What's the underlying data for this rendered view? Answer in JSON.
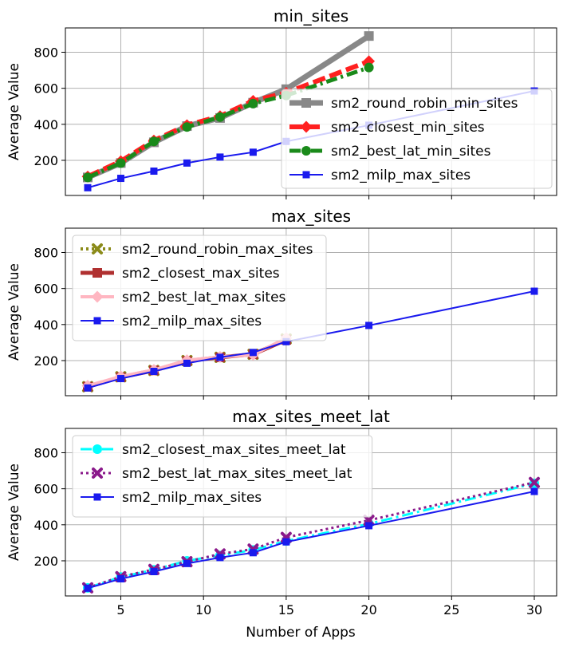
{
  "figure": {
    "xlabel": "Number of Apps",
    "ylabel": "Average Value"
  },
  "chart_data": [
    {
      "type": "line",
      "title": "min_sites",
      "xlabel": "",
      "ylabel": "Average Value",
      "xlim": [
        1.65,
        31.35
      ],
      "ylim": [
        5,
        935
      ],
      "xticks": [
        5,
        10,
        15,
        20,
        25,
        30
      ],
      "yticks": [
        200,
        400,
        600,
        800
      ],
      "grid": true,
      "legend": "lower-right",
      "series": [
        {
          "name": "sm2_round_robin_min_sites",
          "color": "#888888",
          "style": "solid",
          "width": 7,
          "marker": "square",
          "x": [
            3,
            5,
            7,
            9,
            11,
            13,
            15,
            20
          ],
          "y": [
            105,
            185,
            300,
            390,
            435,
            520,
            595,
            890
          ]
        },
        {
          "name": "sm2_closest_min_sites",
          "color": "#ff2020",
          "style": "dashed",
          "width": 6,
          "marker": "diamond",
          "x": [
            3,
            5,
            7,
            9,
            11,
            13,
            15,
            20
          ],
          "y": [
            110,
            195,
            310,
            395,
            445,
            530,
            575,
            750
          ]
        },
        {
          "name": "sm2_best_lat_min_sites",
          "color": "#1a8a1a",
          "style": "dashdot",
          "width": 5,
          "marker": "circle",
          "x": [
            3,
            5,
            7,
            9,
            11,
            13,
            15,
            20
          ],
          "y": [
            105,
            185,
            305,
            385,
            440,
            515,
            560,
            715
          ]
        },
        {
          "name": "sm2_milp_max_sites",
          "color": "#1a1aee",
          "style": "solid",
          "width": 2,
          "marker": "square-small",
          "x": [
            3,
            5,
            7,
            9,
            11,
            13,
            15,
            20,
            30
          ],
          "y": [
            48,
            100,
            140,
            185,
            218,
            245,
            305,
            395,
            585
          ]
        }
      ]
    },
    {
      "type": "line",
      "title": "max_sites",
      "xlabel": "",
      "ylabel": "Average Value",
      "xlim": [
        1.65,
        31.35
      ],
      "ylim": [
        5,
        935
      ],
      "xticks": [
        5,
        10,
        15,
        20,
        25,
        30
      ],
      "yticks": [
        200,
        400,
        600,
        800
      ],
      "grid": true,
      "legend": "upper-left",
      "series": [
        {
          "name": "sm2_round_robin_max_sites",
          "color": "#8b8b1a",
          "style": "dotted",
          "width": 4,
          "marker": "x",
          "x": [
            3,
            5,
            7,
            9,
            11,
            13,
            15
          ],
          "y": [
            55,
            110,
            145,
            200,
            218,
            235,
            320
          ]
        },
        {
          "name": "sm2_closest_max_sites",
          "color": "#b03030",
          "style": "solid",
          "width": 5,
          "marker": "square",
          "x": [
            3,
            5,
            7,
            9,
            11,
            13,
            15
          ],
          "y": [
            55,
            108,
            145,
            198,
            218,
            235,
            315
          ]
        },
        {
          "name": "sm2_best_lat_max_sites",
          "color": "#ffb6c1",
          "style": "solid",
          "width": 4,
          "marker": "diamond",
          "x": [
            3,
            5,
            7,
            9,
            11,
            13,
            15
          ],
          "y": [
            60,
            112,
            148,
            202,
            220,
            232,
            325
          ]
        },
        {
          "name": "sm2_milp_max_sites",
          "color": "#1a1aee",
          "style": "solid",
          "width": 2,
          "marker": "square-small",
          "x": [
            3,
            5,
            7,
            9,
            11,
            13,
            15,
            20,
            30
          ],
          "y": [
            48,
            100,
            140,
            185,
            218,
            245,
            305,
            395,
            585
          ]
        }
      ]
    },
    {
      "type": "line",
      "title": "max_sites_meet_lat",
      "xlabel": "Number of Apps",
      "ylabel": "Average Value",
      "xlim": [
        1.65,
        31.35
      ],
      "ylim": [
        5,
        935
      ],
      "xticks": [
        5,
        10,
        15,
        20,
        25,
        30
      ],
      "yticks": [
        200,
        400,
        600,
        800
      ],
      "grid": true,
      "legend": "upper-left",
      "series": [
        {
          "name": "sm2_closest_max_sites_meet_lat",
          "color": "#00ffff",
          "style": "dashdot",
          "width": 3,
          "marker": "circle",
          "x": [
            3,
            5,
            7,
            9,
            11,
            13,
            15,
            20,
            30
          ],
          "y": [
            50,
            110,
            150,
            200,
            230,
            260,
            310,
            405,
            630
          ]
        },
        {
          "name": "sm2_best_lat_max_sites_meet_lat",
          "color": "#8b1a8b",
          "style": "dotted",
          "width": 3,
          "marker": "x",
          "x": [
            3,
            5,
            7,
            9,
            11,
            13,
            15,
            20,
            30
          ],
          "y": [
            50,
            112,
            152,
            195,
            238,
            265,
            330,
            425,
            635
          ]
        },
        {
          "name": "sm2_milp_max_sites",
          "color": "#1a1aee",
          "style": "solid",
          "width": 2,
          "marker": "square-small",
          "x": [
            3,
            5,
            7,
            9,
            11,
            13,
            15,
            20,
            30
          ],
          "y": [
            48,
            100,
            140,
            185,
            218,
            245,
            305,
            395,
            585
          ]
        }
      ]
    }
  ]
}
